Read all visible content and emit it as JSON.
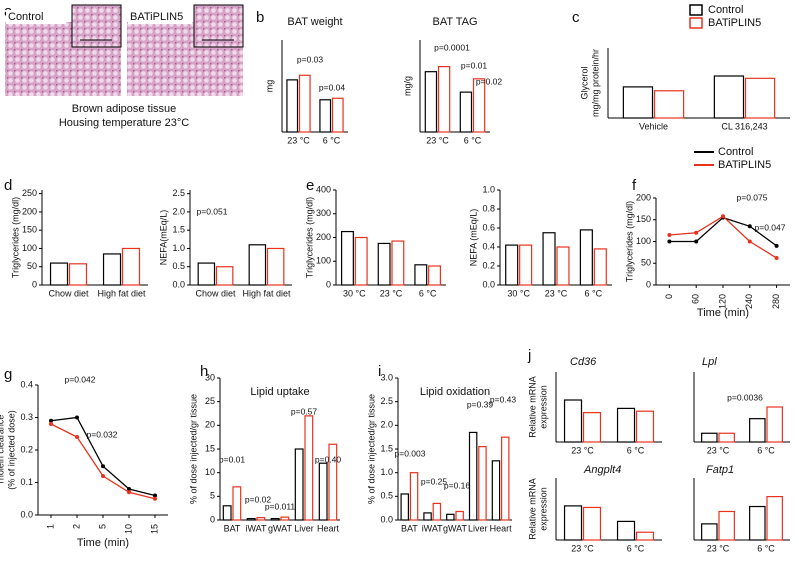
{
  "image_panel": {
    "panel": "a",
    "labels": [
      "Control",
      "BATiPLIN5"
    ],
    "caption": [
      "Brown adipose tissue",
      "Housing temperature 23°C"
    ]
  },
  "chart_data": [
    {
      "type": "bar",
      "panel": "b",
      "title": "BAT weight",
      "ylabel": "mg",
      "categories": [
        "23 °C",
        "6 °C"
      ],
      "ylim": [
        0,
        300
      ],
      "series": [
        {
          "name": "Control",
          "color": "#000000",
          "values": [
            170,
            105
          ]
        },
        {
          "name": "BATiPLIN5",
          "color": "#e8321e",
          "values": [
            185,
            110
          ]
        }
      ],
      "annotations": [
        "p=0.03",
        "p=0.04"
      ]
    },
    {
      "type": "bar",
      "title": "BAT TAG",
      "ylabel": "mg/g",
      "categories": [
        "23 °C",
        "6 °C"
      ],
      "ylim": [
        0,
        900
      ],
      "series": [
        {
          "name": "Control",
          "color": "#000000",
          "values": [
            590,
            390
          ]
        },
        {
          "name": "BATiPLIN5",
          "color": "#e8321e",
          "values": [
            640,
            520
          ]
        }
      ],
      "annotations": [
        "p=0.0001",
        "p=0.01",
        "p=0.02"
      ]
    },
    {
      "type": "bar",
      "panel": "c",
      "ylabel": [
        "Glycerol",
        "mg/mg protein/hr"
      ],
      "categories": [
        "Vehicle",
        "CL 316,243"
      ],
      "ylim": [
        0,
        90
      ],
      "legend": "top",
      "series": [
        {
          "name": "Control",
          "color": "#000000",
          "values": [
            40,
            54
          ]
        },
        {
          "name": "BATiPLIN5",
          "color": "#e8321e",
          "values": [
            35,
            51
          ]
        }
      ]
    },
    {
      "type": "bar",
      "panel": "d",
      "ylabel": "Triglycerides (mg/dl)",
      "categories": [
        "Chow diet",
        "High fat diet"
      ],
      "ylim": [
        0,
        260
      ],
      "yticks": [
        0,
        50,
        100,
        150,
        200,
        250
      ],
      "series": [
        {
          "name": "Control",
          "color": "#000000",
          "values": [
            60,
            85
          ]
        },
        {
          "name": "BATiPLIN5",
          "color": "#e8321e",
          "values": [
            58,
            100
          ]
        }
      ]
    },
    {
      "type": "bar",
      "ylabel": "NEFA(mEq/L)",
      "categories": [
        "Chow diet",
        "High fat diet"
      ],
      "ylim": [
        0,
        2.6
      ],
      "yticks": [
        {
          "value": 0,
          "label": "0.0"
        },
        {
          "value": 0.5,
          "label": "0.5"
        },
        {
          "value": 1,
          "label": "1.0"
        },
        {
          "value": 1.5,
          "label": "1.5"
        },
        {
          "value": 2,
          "label": "2.0"
        },
        {
          "value": 2.5,
          "label": "2.5"
        }
      ],
      "series": [
        {
          "name": "Control",
          "color": "#000000",
          "values": [
            0.6,
            1.1
          ]
        },
        {
          "name": "BATiPLIN5",
          "color": "#e8321e",
          "values": [
            0.5,
            1.0
          ]
        }
      ],
      "annotations": [
        "p=0.051"
      ]
    },
    {
      "type": "bar",
      "panel": "e",
      "ylabel": "Triglycerides (mg/dl)",
      "categories": [
        "30 °C",
        "23 °C",
        "6 °C"
      ],
      "ylim": [
        0,
        400
      ],
      "yticks": [
        0,
        100,
        200,
        300,
        400
      ],
      "series": [
        {
          "name": "Control",
          "color": "#000000",
          "values": [
            225,
            175,
            85
          ]
        },
        {
          "name": "BATiPLIN5",
          "color": "#e8321e",
          "values": [
            200,
            185,
            80
          ]
        }
      ]
    },
    {
      "type": "bar",
      "ylabel": "NEFA (mEq/L)",
      "categories": [
        "30 °C",
        "23 °C",
        "6 °C"
      ],
      "ylim": [
        0,
        1
      ],
      "yticks": [
        {
          "value": 0,
          "label": "0.0"
        },
        {
          "value": 0.2,
          "label": "0.2"
        },
        {
          "value": 0.4,
          "label": "0.4"
        },
        {
          "value": 0.6,
          "label": "0.6"
        },
        {
          "value": 0.8,
          "label": "0.8"
        },
        {
          "value": 1,
          "label": "1.0"
        }
      ],
      "series": [
        {
          "name": "Control",
          "color": "#000000",
          "values": [
            0.42,
            0.55,
            0.58
          ]
        },
        {
          "name": "BATiPLIN5",
          "color": "#e8321e",
          "values": [
            0.42,
            0.4,
            0.38
          ]
        }
      ]
    },
    {
      "type": "line",
      "panel": "f",
      "ylabel": "Triglycerides (mg/dl)",
      "xlabel": "Time (min)",
      "categories": [
        "0",
        "60",
        "120",
        "240",
        "280"
      ],
      "ylim": [
        0,
        200
      ],
      "yticks": [
        0,
        50,
        100,
        150,
        200
      ],
      "legend": "top",
      "series": [
        {
          "name": "Control",
          "color": "#000000",
          "values": [
            100,
            100,
            155,
            135,
            90
          ]
        },
        {
          "name": "BATiPLIN5",
          "color": "#e8321e",
          "values": [
            115,
            120,
            158,
            100,
            62
          ]
        }
      ],
      "annotations": [
        "p=0.075",
        "p=0.047"
      ]
    },
    {
      "type": "line",
      "panel": "g",
      "ylabel": [
        "Triolein clearance",
        "(% of injected dose)"
      ],
      "xlabel": "Time (min)",
      "categories": [
        "1",
        "2",
        "5",
        "10",
        "15"
      ],
      "ylim": [
        0,
        0.4
      ],
      "yticks": [
        {
          "value": 0,
          "label": "0.0"
        },
        {
          "value": 0.1,
          "label": "0.1"
        },
        {
          "value": 0.2,
          "label": "0.2"
        },
        {
          "value": 0.3,
          "label": "0.3"
        },
        {
          "value": 0.4,
          "label": "0.4"
        }
      ],
      "series": [
        {
          "name": "Control",
          "color": "#000000",
          "values": [
            0.29,
            0.3,
            0.15,
            0.08,
            0.06
          ]
        },
        {
          "name": "BATiPLIN5",
          "color": "#e8321e",
          "values": [
            0.28,
            0.24,
            0.12,
            0.07,
            0.05
          ]
        }
      ],
      "annotations": [
        "p=0.042",
        "p=0.032"
      ]
    },
    {
      "type": "bar",
      "panel": "h",
      "title": "Lipid uptake",
      "ylabel": "% of dose injected/gr tissue",
      "categories": [
        "BAT",
        "iWAT",
        "gWAT",
        "Liver",
        "Heart"
      ],
      "ylim": [
        0,
        30
      ],
      "yticks": [
        0,
        5,
        10,
        15,
        20,
        25,
        30
      ],
      "series": [
        {
          "name": "Control",
          "color": "#000000",
          "values": [
            3,
            0.3,
            0.3,
            15,
            12
          ]
        },
        {
          "name": "BATiPLIN5",
          "color": "#e8321e",
          "values": [
            7,
            0.5,
            0.6,
            22,
            16
          ]
        }
      ],
      "annotations": [
        "p=0.01",
        "p=0.02",
        "p=0.011",
        "p=0.57",
        "p=0.40"
      ]
    },
    {
      "type": "bar",
      "panel": "i",
      "title": "Lipid oxidation",
      "ylabel": "% of dose injected/gr tissue",
      "categories": [
        "BAT",
        "iWAT",
        "gWAT",
        "Liver",
        "Heart"
      ],
      "ylim": [
        0,
        3
      ],
      "yticks": [
        {
          "value": 0,
          "label": "0.0"
        },
        {
          "value": 0.5,
          "label": "0.5"
        },
        {
          "value": 1,
          "label": "1.0"
        },
        {
          "value": 1.5,
          "label": "1.5"
        },
        {
          "value": 2,
          "label": "2.0"
        },
        {
          "value": 2.5,
          "label": "2.5"
        },
        {
          "value": 3,
          "label": "3.0"
        }
      ],
      "series": [
        {
          "name": "Control",
          "color": "#000000",
          "values": [
            0.55,
            0.15,
            0.12,
            1.85,
            1.25
          ]
        },
        {
          "name": "BATiPLIN5",
          "color": "#e8321e",
          "values": [
            1.0,
            0.35,
            0.18,
            1.55,
            1.75
          ]
        }
      ],
      "annotations": [
        "p=0.003",
        "p=0.25",
        "p=0.16",
        "p=0.39",
        "p=0.43"
      ]
    },
    {
      "type": "bar",
      "panel": "j",
      "gene": "Cd36",
      "ylabel": [
        "Relative mRNA",
        "expression"
      ],
      "categories": [
        "23 °C",
        "6 °C"
      ],
      "ylim": [
        0,
        2.5
      ],
      "series": [
        {
          "name": "Control",
          "color": "#000000",
          "values": [
            1.5,
            1.2
          ]
        },
        {
          "name": "BATiPLIN5",
          "color": "#e8321e",
          "values": [
            1.05,
            1.1
          ]
        }
      ]
    },
    {
      "type": "bar",
      "gene": "Lpl",
      "categories": [
        "23 °C",
        "6 °C"
      ],
      "ylim": [
        0,
        12
      ],
      "series": [
        {
          "name": "Control",
          "color": "#000000",
          "values": [
            1.5,
            4
          ]
        },
        {
          "name": "BATiPLIN5",
          "color": "#e8321e",
          "values": [
            1.5,
            6
          ]
        }
      ],
      "annotations": [
        "p=0.0036"
      ]
    },
    {
      "type": "bar",
      "gene": "Angplt4",
      "ylabel": [
        "Relative mRNA",
        "expression"
      ],
      "categories": [
        "23 °C",
        "6 °C"
      ],
      "ylim": [
        0,
        2
      ],
      "series": [
        {
          "name": "Control",
          "color": "#000000",
          "values": [
            1.1,
            0.6
          ]
        },
        {
          "name": "BATiPLIN5",
          "color": "#e8321e",
          "values": [
            1.05,
            0.25
          ]
        }
      ]
    },
    {
      "type": "bar",
      "gene": "Fatp1",
      "categories": [
        "23 °C",
        "6 °C"
      ],
      "ylim": [
        0,
        5
      ],
      "series": [
        {
          "name": "Control",
          "color": "#000000",
          "values": [
            1.3,
            2.7
          ]
        },
        {
          "name": "BATiPLIN5",
          "color": "#e8321e",
          "values": [
            2.3,
            3.5
          ]
        }
      ]
    }
  ]
}
